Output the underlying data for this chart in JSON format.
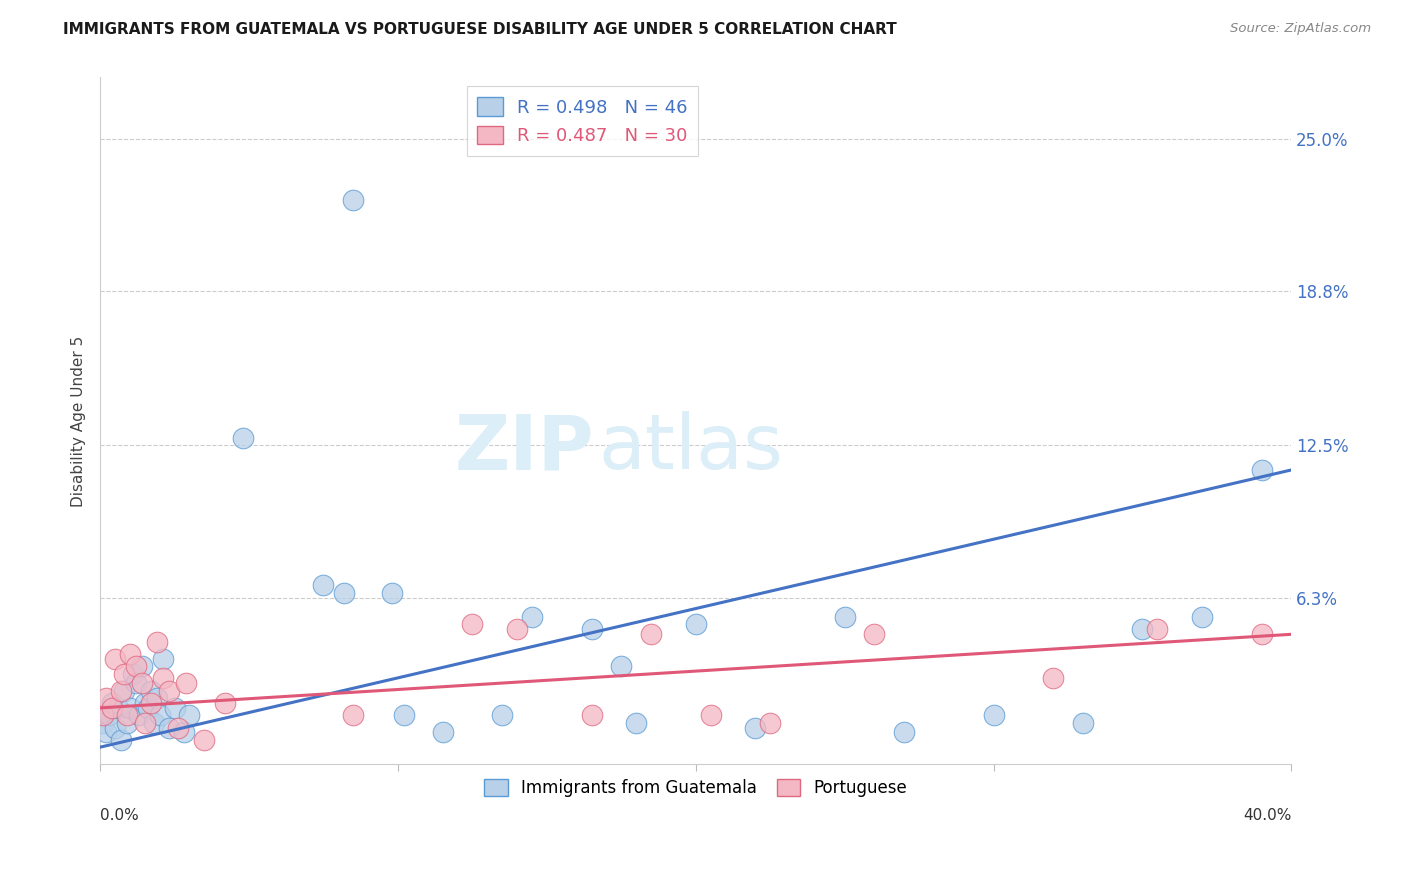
{
  "title": "IMMIGRANTS FROM GUATEMALA VS PORTUGUESE DISABILITY AGE UNDER 5 CORRELATION CHART",
  "source": "Source: ZipAtlas.com",
  "ylabel": "Disability Age Under 5",
  "ytick_labels": [
    "6.3%",
    "12.5%",
    "18.8%",
    "25.0%"
  ],
  "ytick_values": [
    6.3,
    12.5,
    18.8,
    25.0
  ],
  "xlim": [
    0.0,
    40.0
  ],
  "ylim": [
    -0.5,
    27.5
  ],
  "legend_r1": "R = 0.498",
  "legend_n1": "N = 46",
  "legend_r2": "R = 0.487",
  "legend_n2": "N = 30",
  "blue_fill": "#b8d0e8",
  "blue_edge": "#5b9bd5",
  "pink_fill": "#f4b8c4",
  "pink_edge": "#e06880",
  "blue_line": "#4472c4",
  "pink_line": "#e05878",
  "watermark_color": "#dceef8",
  "guatemala_x": [
    0.1,
    0.2,
    0.3,
    0.4,
    0.5,
    0.6,
    0.7,
    0.8,
    0.9,
    1.0,
    1.1,
    1.2,
    1.3,
    1.4,
    1.5,
    1.6,
    1.7,
    1.8,
    1.9,
    2.0,
    2.1,
    2.3,
    2.5,
    2.8,
    3.0,
    4.8,
    7.5,
    8.2,
    9.8,
    10.2,
    11.5,
    13.5,
    14.5,
    16.5,
    18.0,
    20.0,
    22.0,
    25.0,
    27.0,
    30.0,
    33.0,
    35.0,
    37.0,
    39.0,
    8.5,
    17.5
  ],
  "guatemala_y": [
    1.2,
    0.8,
    1.5,
    2.0,
    1.0,
    1.8,
    0.5,
    2.5,
    1.2,
    1.8,
    3.2,
    2.8,
    1.5,
    3.5,
    2.0,
    1.8,
    2.5,
    1.2,
    2.2,
    1.5,
    3.8,
    1.0,
    1.8,
    0.8,
    1.5,
    12.8,
    6.8,
    6.5,
    6.5,
    1.5,
    0.8,
    1.5,
    5.5,
    5.0,
    1.2,
    5.2,
    1.0,
    5.5,
    0.8,
    1.5,
    1.2,
    5.0,
    5.5,
    11.5,
    22.5,
    3.5
  ],
  "portuguese_x": [
    0.1,
    0.2,
    0.4,
    0.5,
    0.7,
    0.8,
    0.9,
    1.0,
    1.2,
    1.4,
    1.5,
    1.7,
    1.9,
    2.1,
    2.3,
    2.6,
    2.9,
    3.5,
    4.2,
    8.5,
    12.5,
    14.0,
    16.5,
    18.5,
    20.5,
    22.5,
    26.0,
    32.0,
    35.5,
    39.0
  ],
  "portuguese_y": [
    1.5,
    2.2,
    1.8,
    3.8,
    2.5,
    3.2,
    1.5,
    4.0,
    3.5,
    2.8,
    1.2,
    2.0,
    4.5,
    3.0,
    2.5,
    1.0,
    2.8,
    0.5,
    2.0,
    1.5,
    5.2,
    5.0,
    1.5,
    4.8,
    1.5,
    1.2,
    4.8,
    3.0,
    5.0,
    4.8
  ],
  "blue_trend_x": [
    0.0,
    40.0
  ],
  "blue_trend_y": [
    0.2,
    11.5
  ],
  "pink_trend_x": [
    0.0,
    40.0
  ],
  "pink_trend_y": [
    1.8,
    4.8
  ]
}
